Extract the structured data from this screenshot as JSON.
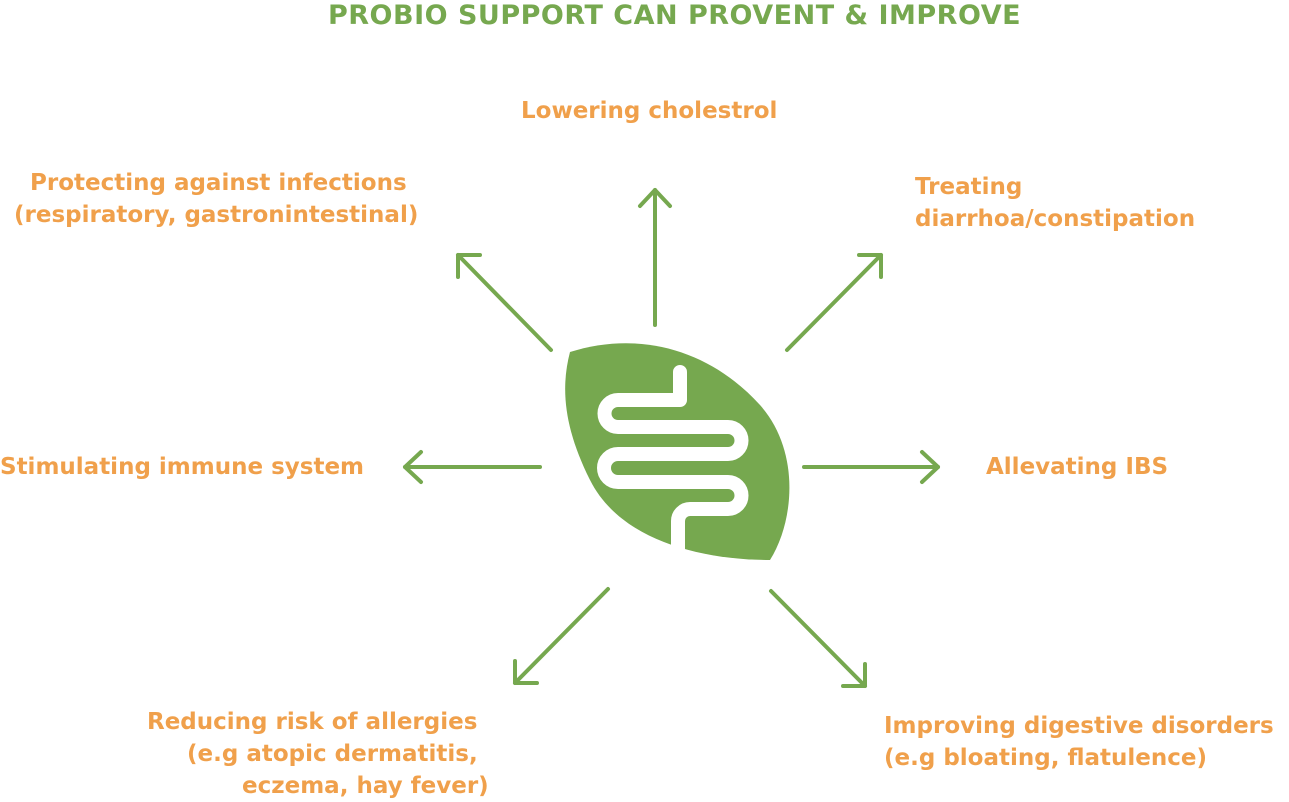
{
  "title": "PROBIO SUPPORT CAN PROVENT & IMPROVE",
  "colors": {
    "green": "#76a84f",
    "orange": "#f0a04b"
  },
  "center_icon": "intestine-icon",
  "benefits": {
    "cholesterol": {
      "lines": [
        "Lowering cholestrol"
      ]
    },
    "infections": {
      "lines": [
        "Protecting against infections",
        "(respiratory, gastronintestinal)"
      ]
    },
    "diarrhoea": {
      "lines": [
        "Treating",
        "diarrhoa/constipation"
      ]
    },
    "immune": {
      "lines": [
        "Stimulating immune system"
      ]
    },
    "ibs": {
      "lines": [
        "Allevating IBS"
      ]
    },
    "allergies": {
      "lines": [
        "Reducing risk of allergies",
        "(e.g atopic dermatitis,",
        "eczema, hay fever)"
      ]
    },
    "digestive": {
      "lines": [
        "Improving digestive disorders",
        "(e.g bloating, flatulence)"
      ]
    }
  }
}
